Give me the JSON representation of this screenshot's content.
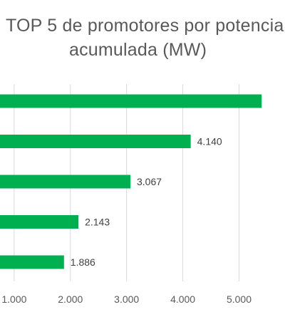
{
  "chart_data": {
    "type": "bar",
    "orientation": "horizontal",
    "title_lines": [
      "TOP 5 de promotores por potencia",
      "acumulada (MW)"
    ],
    "categories": [
      "",
      "",
      "",
      "",
      ""
    ],
    "values": [
      5400,
      4140,
      3067,
      2143,
      1886
    ],
    "data_labels": [
      "",
      "4.140",
      "3.067",
      "2.143",
      "1.886"
    ],
    "x_ticks": [
      1000,
      2000,
      3000,
      4000,
      5000
    ],
    "x_tick_labels": [
      "1.000",
      "2.000",
      "3.000",
      "4.000",
      "5.000"
    ],
    "xlim": [
      0,
      5400
    ],
    "grid": true,
    "legend": "none",
    "bar_color": "#00B050",
    "grid_color": "#D9D9D9"
  }
}
